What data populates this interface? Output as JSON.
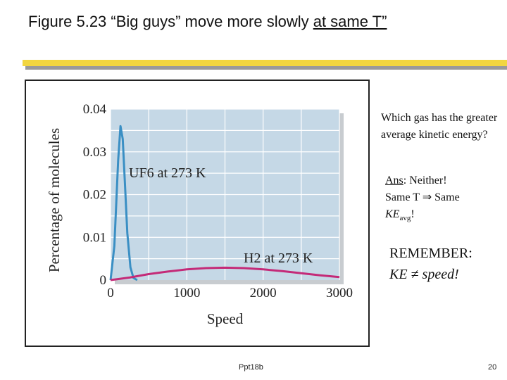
{
  "slide": {
    "title_prefix": "Figure 5.23  “Big guys” move more slowly ",
    "title_underlined": "at same T”",
    "footer_label": "Ppt18b",
    "page_number": "20"
  },
  "side": {
    "question": "Which gas has the greater average kinetic energy?",
    "ans_label": "Ans",
    "ans_text": ":  Neither!",
    "same_line": "Same T ⇒ Same",
    "ke": "KE",
    "avg": "avg",
    "bang": "!",
    "remember": "REMEMBER:",
    "ke_speed": "KE ≠ speed!"
  },
  "chart_data": {
    "type": "line",
    "xlabel": "Speed",
    "ylabel": "Percentage of molecules",
    "x_ticks": [
      0,
      1000,
      2000,
      3000
    ],
    "y_ticks": [
      "0",
      "0.01",
      "0.02",
      "0.03",
      "0.04"
    ],
    "xlim": [
      0,
      3000
    ],
    "ylim": [
      0,
      0.04
    ],
    "grid": true,
    "background": "#c5d8e6",
    "series": [
      {
        "name": "UF6 at 273 K",
        "color": "#3a8fc4",
        "x": [
          0,
          50,
          100,
          130,
          160,
          190,
          220,
          260,
          300,
          350
        ],
        "y": [
          0,
          0.008,
          0.028,
          0.036,
          0.033,
          0.022,
          0.011,
          0.003,
          0.0005,
          0
        ]
      },
      {
        "name": "H2 at 273 K",
        "color": "#c42a78",
        "x": [
          0,
          250,
          500,
          750,
          1000,
          1250,
          1500,
          1750,
          2000,
          2250,
          2500,
          2750,
          3000
        ],
        "y": [
          0,
          0.0006,
          0.0014,
          0.002,
          0.0025,
          0.0028,
          0.0029,
          0.0028,
          0.0025,
          0.0021,
          0.0016,
          0.0011,
          0.0007
        ]
      }
    ]
  }
}
